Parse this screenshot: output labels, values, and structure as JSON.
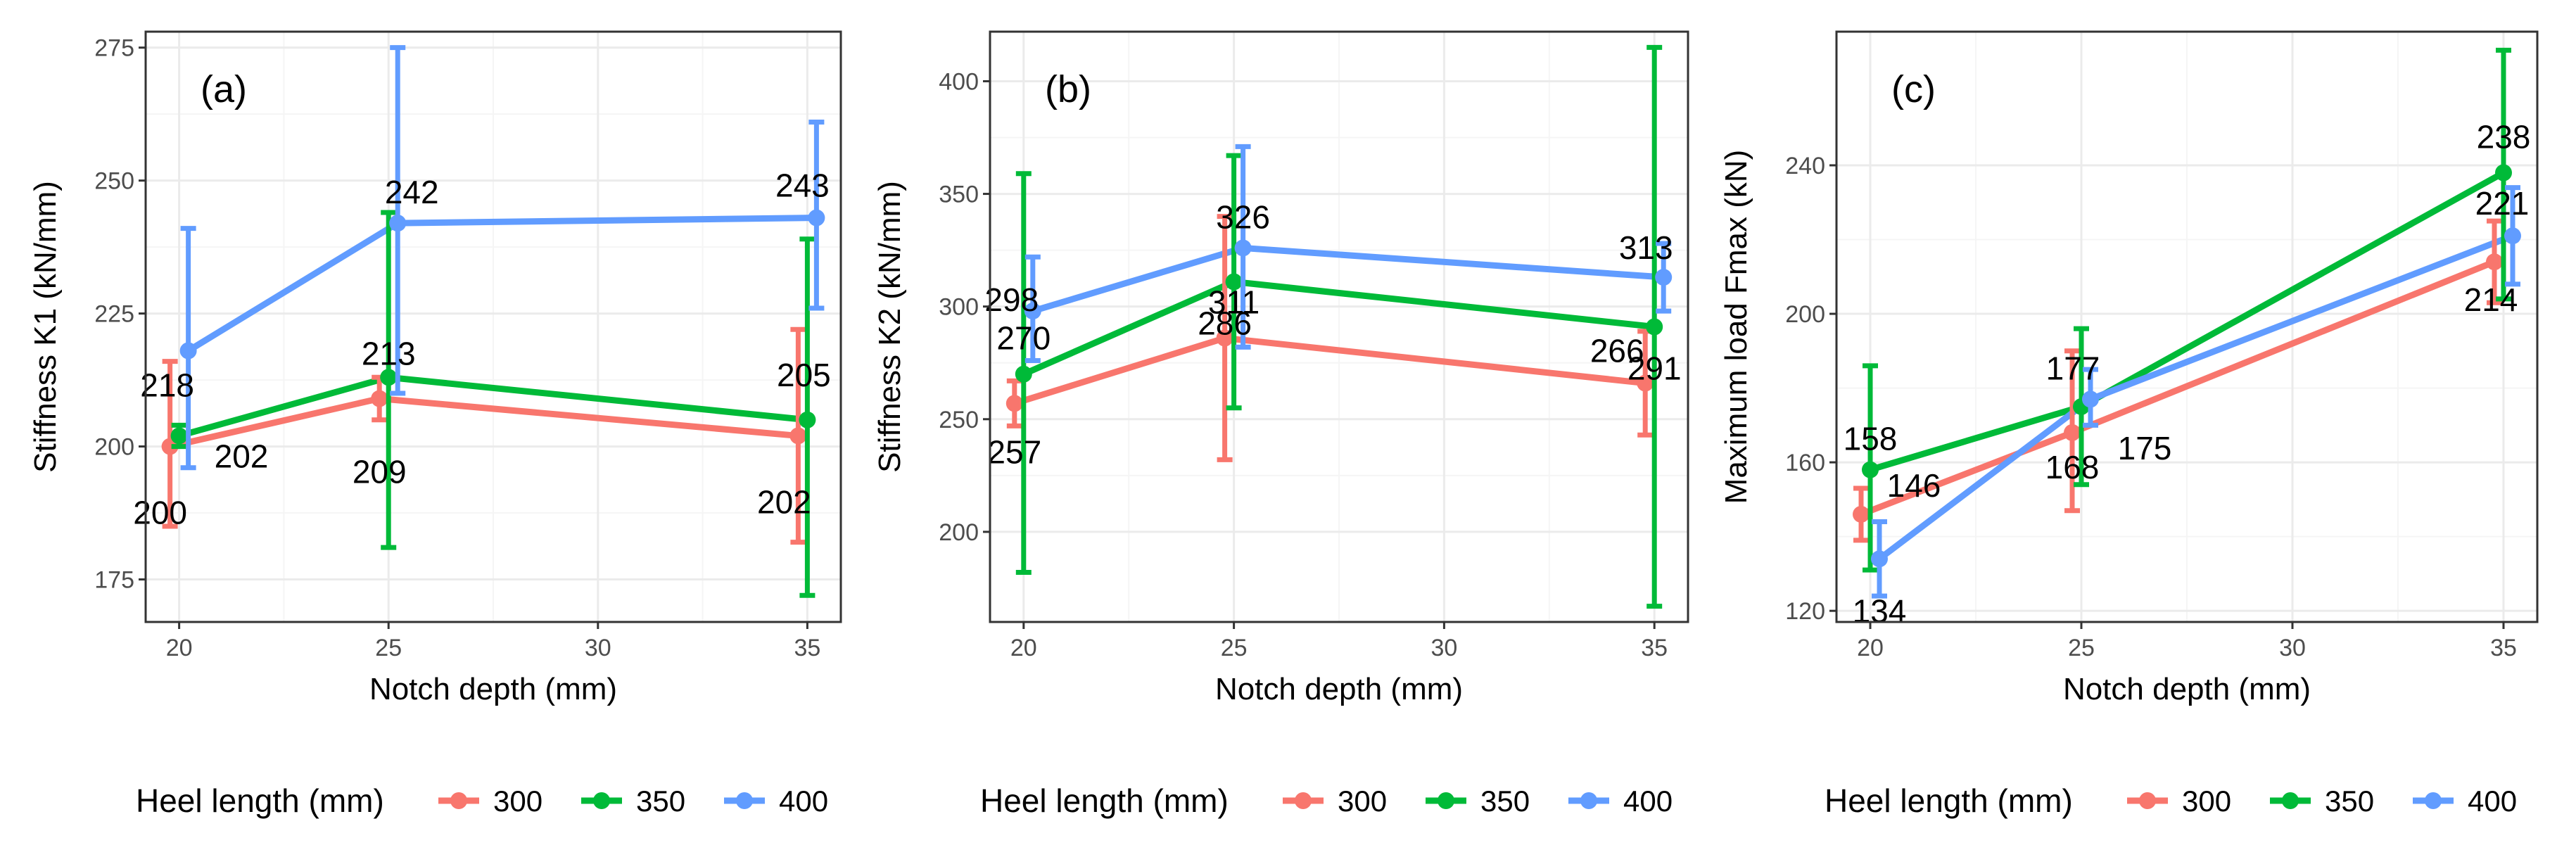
{
  "colors": {
    "300": "#F8766D",
    "350": "#00BA38",
    "400": "#619CFF",
    "grid_major": "#ebebeb",
    "grid_minor": "#f5f5f5",
    "panel_border": "#333333"
  },
  "legend": {
    "title": "Heel length (mm)",
    "entries": [
      "300",
      "350",
      "400"
    ]
  },
  "chart_data": [
    {
      "type": "line",
      "panel": "(a)",
      "xlabel": "Notch depth (mm)",
      "ylabel": "Stiffness K1 (kN/mm)",
      "xlim": [
        19.2,
        35.8
      ],
      "ylim": [
        167,
        278
      ],
      "xticks": [
        20,
        25,
        30,
        35
      ],
      "yticks": [
        175,
        200,
        225,
        250,
        275
      ],
      "x": [
        20,
        25,
        35
      ],
      "series": [
        {
          "name": "300",
          "values": [
            200,
            209,
            202
          ],
          "err_low": [
            185,
            205,
            182
          ],
          "err_high": [
            216,
            213,
            222
          ],
          "labels": [
            "200",
            "209",
            "202"
          ]
        },
        {
          "name": "350",
          "values": [
            202,
            213,
            205
          ],
          "err_low": [
            200,
            181,
            172
          ],
          "err_high": [
            204,
            244,
            239
          ],
          "labels": [
            "202",
            "213",
            "205"
          ]
        },
        {
          "name": "400",
          "values": [
            218,
            242,
            243
          ],
          "err_low": [
            196,
            210,
            226
          ],
          "err_high": [
            241,
            275,
            261
          ],
          "labels": [
            "218",
            "242",
            "243"
          ]
        }
      ]
    },
    {
      "type": "line",
      "panel": "(b)",
      "xlabel": "Notch depth (mm)",
      "ylabel": "Stiffness K2 (kN/mm)",
      "xlim": [
        19.2,
        35.8
      ],
      "ylim": [
        160,
        422
      ],
      "xticks": [
        20,
        25,
        30,
        35
      ],
      "yticks": [
        200,
        250,
        300,
        350,
        400
      ],
      "x": [
        20,
        25,
        35
      ],
      "series": [
        {
          "name": "300",
          "values": [
            257,
            286,
            266
          ],
          "err_low": [
            247,
            232,
            243
          ],
          "err_high": [
            267,
            340,
            289
          ],
          "labels": [
            "257",
            "286",
            "266"
          ]
        },
        {
          "name": "350",
          "values": [
            270,
            311,
            291
          ],
          "err_low": [
            182,
            255,
            167
          ],
          "err_high": [
            359,
            367,
            415
          ],
          "labels": [
            "270",
            "311",
            "291"
          ]
        },
        {
          "name": "400",
          "values": [
            298,
            326,
            313
          ],
          "err_low": [
            276,
            282,
            298
          ],
          "err_high": [
            322,
            371,
            328
          ],
          "labels": [
            "298",
            "326",
            "313"
          ]
        }
      ]
    },
    {
      "type": "line",
      "panel": "(c)",
      "xlabel": "Notch depth (mm)",
      "ylabel": "Maximum load Fmax (kN)",
      "xlim": [
        19.2,
        35.8
      ],
      "ylim": [
        117,
        276
      ],
      "xticks": [
        20,
        25,
        30,
        35
      ],
      "yticks": [
        120,
        160,
        200,
        240
      ],
      "x": [
        20,
        25,
        35
      ],
      "series": [
        {
          "name": "300",
          "values": [
            146,
            168,
            214
          ],
          "err_low": [
            139,
            147,
            203
          ],
          "err_high": [
            153,
            190,
            225
          ],
          "labels": [
            "146",
            "168",
            "214"
          ]
        },
        {
          "name": "350",
          "values": [
            158,
            175,
            238
          ],
          "err_low": [
            131,
            154,
            204
          ],
          "err_high": [
            186,
            196,
            271
          ],
          "labels": [
            "158",
            "175",
            "238"
          ]
        },
        {
          "name": "400",
          "values": [
            134,
            177,
            221
          ],
          "err_low": [
            124,
            170,
            208
          ],
          "err_high": [
            144,
            185,
            234
          ],
          "labels": [
            "134",
            "177",
            "221"
          ]
        }
      ]
    }
  ]
}
